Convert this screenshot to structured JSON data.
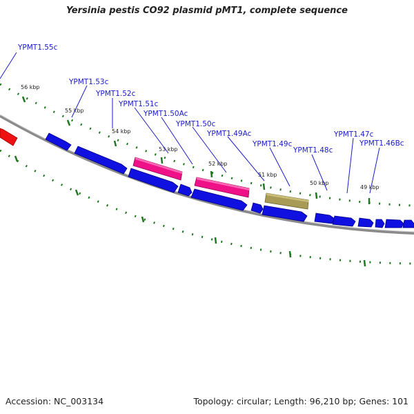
{
  "title": "Yersinia pestis CO92 plasmid pMT1, complete sequence",
  "accession": "Accession: NC_003134",
  "summary": "Topology: circular; Length: 96,210 bp; Genes: 101",
  "colors": {
    "backbone": "#808080",
    "tick": "#1e7a1e",
    "gene_forward": "#1010e0",
    "gene_pink": "#ee1188",
    "gene_olive": "#a89b55",
    "gene_red": "#ee1111",
    "label": "#1a1acc"
  },
  "ticks": [
    "56 kbp",
    "55 kbp",
    "54 kbp",
    "53 kbp",
    "52 kbp",
    "51 kbp",
    "50 kbp",
    "49 kbp"
  ],
  "gene_labels": [
    "YPMT1.55c",
    "YPMT1.53c",
    "YPMT1.52c",
    "YPMT1.51c",
    "YPMT1.50Ac",
    "YPMT1.50c",
    "YPMT1.49Ac",
    "YPMT1.49c",
    "YPMT1.48c",
    "YPMT1.47c",
    "YPMT1.46Bc"
  ]
}
